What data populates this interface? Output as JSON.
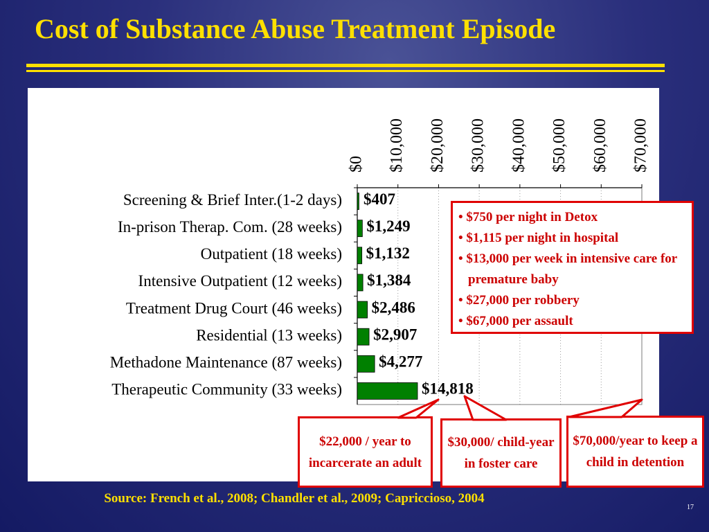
{
  "slide": {
    "title": "Cost of Substance Abuse Treatment Episode",
    "source": "Source: French et al., 2008; Chandler et al., 2009; Capriccioso, 2004",
    "slide_number": "17",
    "colors": {
      "background": "#1c2270",
      "title": "#ffe000",
      "bar": "#008000",
      "callout_border": "#e00000",
      "callout_text": "#cc0000"
    }
  },
  "chart_data": {
    "type": "bar",
    "orientation": "horizontal",
    "categories": [
      "Screening & Brief Inter.(1-2 days)",
      "In-prison Therap. Com. (28 weeks)",
      "Outpatient (18 weeks)",
      "Intensive Outpatient (12 weeks)",
      "Treatment Drug Court (46 weeks)",
      "Residential (13 weeks)",
      "Methadone Maintenance (87 weeks)",
      "Therapeutic Community (33 weeks)"
    ],
    "values": [
      407,
      1249,
      1132,
      1384,
      2486,
      2907,
      4277,
      14818
    ],
    "data_labels": [
      "$407",
      "$1,249",
      "$1,132",
      "$1,384",
      "$2,486",
      "$2,907",
      "$4,277",
      "$14,818"
    ],
    "x_ticks": [
      0,
      10000,
      20000,
      30000,
      40000,
      50000,
      60000,
      70000
    ],
    "x_tick_labels": [
      "$0",
      "$10,000",
      "$20,000",
      "$30,000",
      "$40,000",
      "$50,000",
      "$60,000",
      "$70,000"
    ],
    "xlim": [
      0,
      70000
    ],
    "x_axis_position": "top",
    "grid": "vertical dotted",
    "bar_color": "#008000",
    "title": "",
    "xlabel": "",
    "ylabel": ""
  },
  "callouts": {
    "costs_list": [
      "$750 per night in Detox",
      "$1,115 per night in hospital",
      "$13,000 per week in intensive care for premature baby",
      "$27,000 per robbery",
      "$67,000 per assault"
    ],
    "incarcerate_adult": "$22,000 / year to incarcerate an adult",
    "foster_care": "$30,000/ child-year in foster care",
    "detention": "$70,000/year to keep a child in detention"
  }
}
